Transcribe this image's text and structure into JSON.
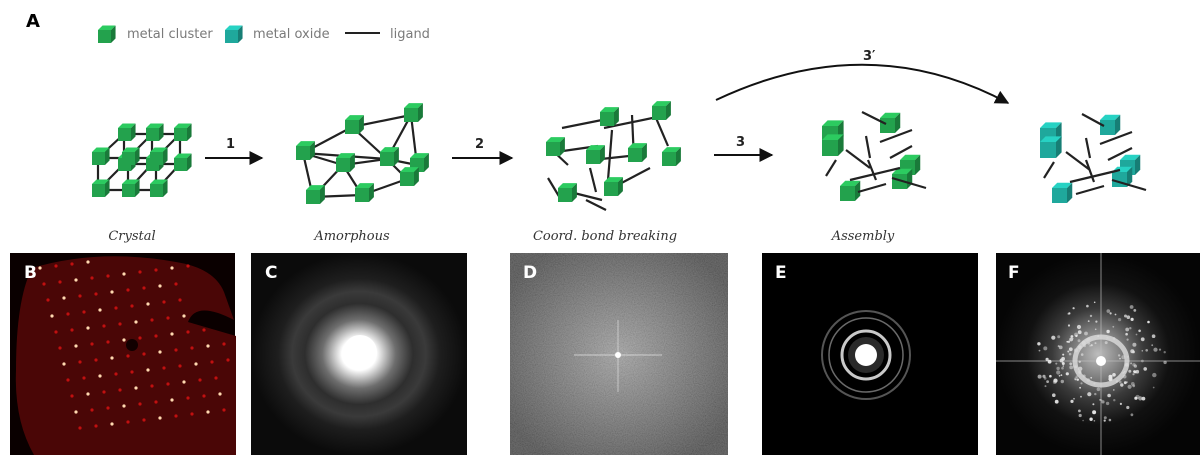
{
  "panel_a": {
    "letter": "A",
    "legend": [
      {
        "icon": "green-cube-icon",
        "label": "metal cluster",
        "color": "#23a24d"
      },
      {
        "icon": "teal-cube-icon",
        "label": "metal oxide",
        "color": "#1fa89c"
      },
      {
        "icon": "line-icon",
        "label": "ligand",
        "color": "#222222"
      }
    ],
    "steps": [
      "1",
      "2",
      "3",
      "3′"
    ],
    "stages": [
      "Crystal",
      "Amorphous",
      "Coord. bond breaking",
      "Assembly"
    ]
  },
  "images": [
    {
      "letter": "B",
      "kind": "diffraction-lattice"
    },
    {
      "letter": "C",
      "kind": "diffuse-halo"
    },
    {
      "letter": "D",
      "kind": "noise-fft"
    },
    {
      "letter": "E",
      "kind": "ring-pattern"
    },
    {
      "letter": "F",
      "kind": "spotty-ring-pattern"
    }
  ],
  "colors": {
    "cluster": "#23a24d",
    "oxide": "#1fa89c",
    "ligand": "#222222",
    "lattice": "#c01010"
  }
}
